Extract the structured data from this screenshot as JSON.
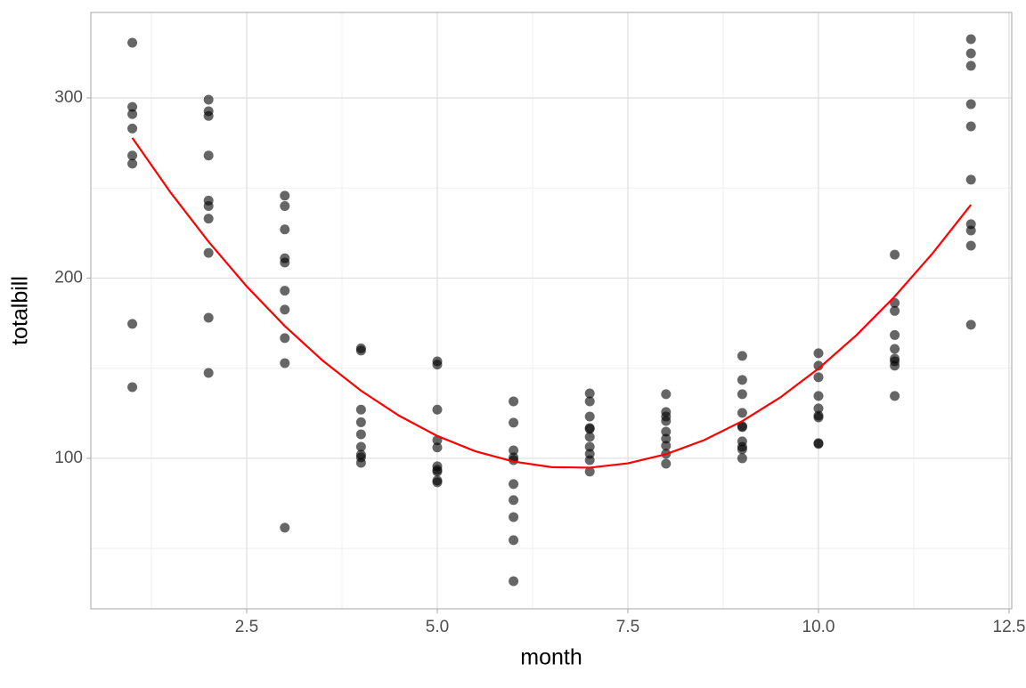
{
  "chart_data": {
    "type": "scatter",
    "x_label": "month",
    "y_label": "totalbill",
    "xlim": [
      0.456,
      12.535
    ],
    "ylim": [
      16.5,
      347.4
    ],
    "xticks": [
      2.5,
      {
        "value": 5,
        "label": "5.0"
      },
      7.5,
      {
        "value": 10,
        "label": "10.0"
      },
      12.5
    ],
    "yticks": [
      100,
      200,
      300
    ],
    "x_minor_grid": [
      1.25,
      3.75,
      6.25,
      8.75,
      11.25
    ],
    "y_minor_grid": [
      50,
      150,
      250
    ],
    "grid": true,
    "point_color": "#000000",
    "point_opacity": 0.6,
    "groups": [
      {
        "x": 1,
        "values": [
          330.6,
          295,
          291,
          283,
          268,
          263.5,
          174.6,
          139.5
        ]
      },
      {
        "x": 2,
        "values": [
          299,
          292.6,
          290,
          268,
          243,
          240,
          233,
          214,
          178,
          147.4
        ]
      },
      {
        "x": 3,
        "values": [
          245.7,
          240,
          227,
          211,
          208.6,
          193,
          182.5,
          166.7,
          152.8,
          61.5
        ]
      },
      {
        "x": 4,
        "values": [
          161,
          159.8,
          127,
          120,
          113.3,
          106.4,
          102,
          100.5,
          97.5
        ]
      },
      {
        "x": 5,
        "values": [
          153.8,
          152,
          127,
          110,
          106,
          95.6,
          93.6,
          92.6,
          87.7,
          86.7
        ]
      },
      {
        "x": 6,
        "values": [
          131.6,
          119.8,
          104.4,
          100.5,
          99,
          85.7,
          76.8,
          67.4,
          54.6,
          31.8
        ]
      },
      {
        "x": 7,
        "values": [
          136,
          131.6,
          123.2,
          116.8,
          116.3,
          111.9,
          106.4,
          102.5,
          99,
          92.6
        ]
      },
      {
        "x": 8,
        "values": [
          135.6,
          125.7,
          123.2,
          120.7,
          114.8,
          110.9,
          107,
          102.5,
          97
        ]
      },
      {
        "x": 9,
        "values": [
          156.8,
          143.5,
          135.6,
          125.2,
          117.8,
          117.3,
          109.4,
          106.4,
          105,
          100
        ]
      },
      {
        "x": 10,
        "values": [
          158.3,
          151.4,
          145,
          134.6,
          127.7,
          123.7,
          122.7,
          108.4,
          108
        ]
      },
      {
        "x": 11,
        "values": [
          213,
          186.2,
          181.8,
          168.4,
          160.7,
          155.3,
          153.8,
          151.4,
          134.6
        ]
      },
      {
        "x": 12,
        "values": [
          332.6,
          324.7,
          317.8,
          296.5,
          284.2,
          254.6,
          229.9,
          226.4,
          218,
          174.1
        ]
      }
    ],
    "fit": {
      "color": "#ff0000",
      "x": [
        1,
        1.5,
        2,
        2.5,
        3,
        3.5,
        4,
        4.5,
        5,
        5.5,
        6,
        6.5,
        7,
        7.5,
        8,
        8.5,
        9,
        9.5,
        10,
        10.5,
        11,
        11.5,
        12
      ],
      "values": [
        277.8,
        247.6,
        220.2,
        195.4,
        173.4,
        154.1,
        137.5,
        123.6,
        112.4,
        103.9,
        98.2,
        95.1,
        94.8,
        97.2,
        102.3,
        110.1,
        120.6,
        133.8,
        149.8,
        168.4,
        189.8,
        213.9,
        240.7
      ]
    }
  }
}
